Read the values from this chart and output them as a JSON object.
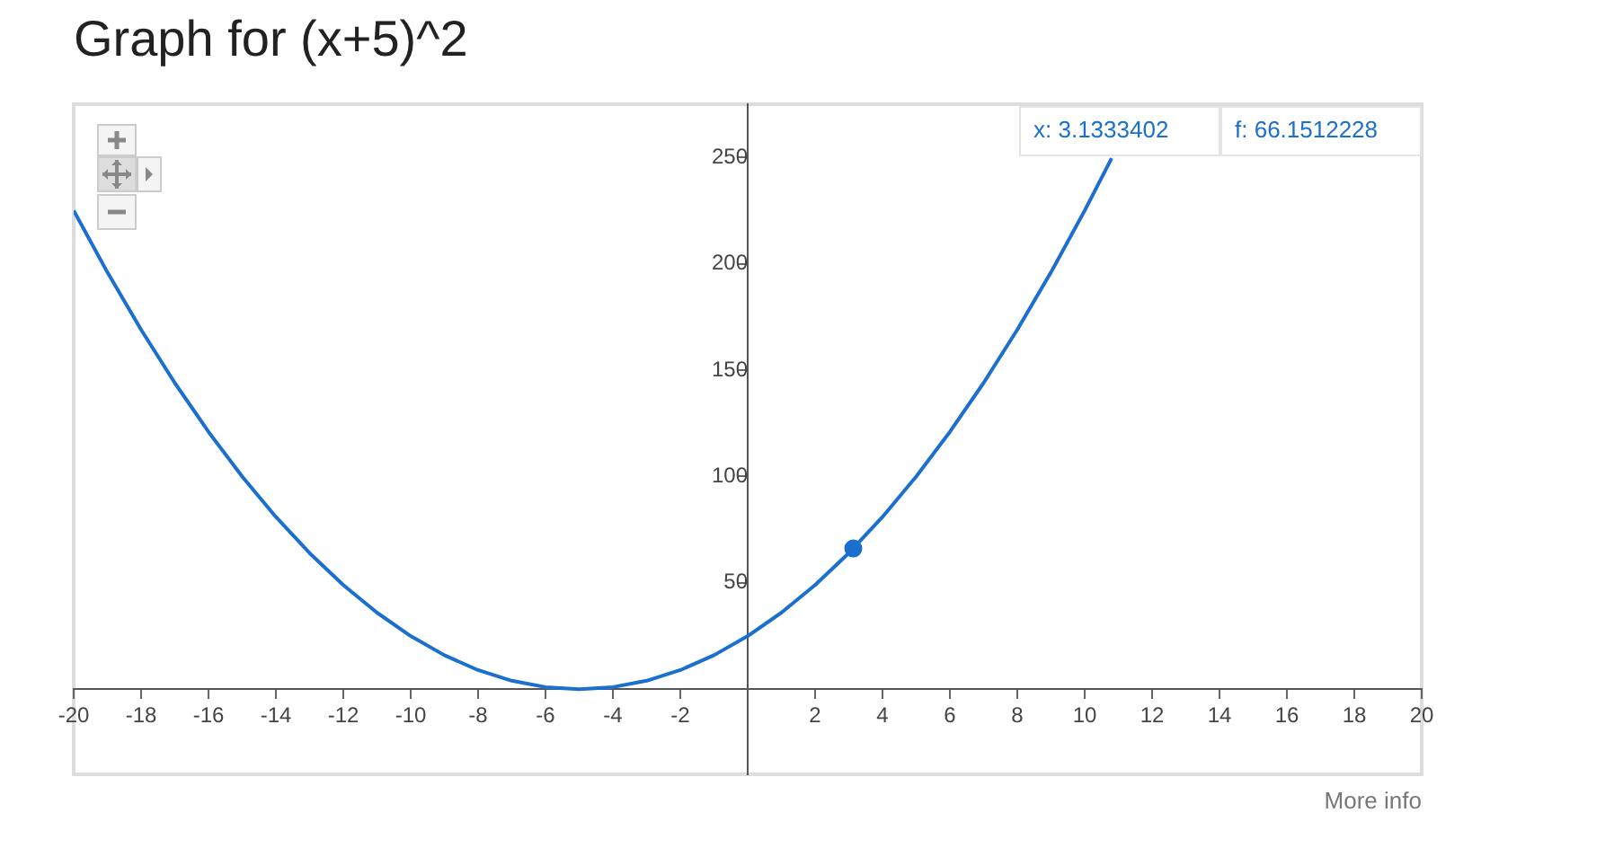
{
  "chart_data": {
    "type": "line",
    "title": "Graph for (x+5)^2",
    "xlim": [
      -20,
      20
    ],
    "ylim": [
      -40,
      275
    ],
    "xticks": [
      -20,
      -18,
      -16,
      -14,
      -12,
      -10,
      -8,
      -6,
      -4,
      -2,
      2,
      4,
      6,
      8,
      10,
      12,
      14,
      16,
      18,
      20
    ],
    "yticks": [
      50,
      100,
      150,
      200,
      250
    ],
    "grid": false,
    "line_style": "solid",
    "series": [
      {
        "color": "#1a6fcf",
        "x": [
          -20,
          -19,
          -18,
          -17,
          -16,
          -15,
          -14,
          -13,
          -12,
          -11,
          -10,
          -9,
          -8,
          -7,
          -6,
          -5,
          -4,
          -3,
          -2,
          -1,
          0,
          1,
          2,
          3,
          4,
          5,
          6,
          7,
          8,
          9,
          10,
          10.8
        ],
        "values": [
          225,
          196,
          169,
          144,
          121,
          100,
          81,
          64,
          49,
          36,
          25,
          16,
          9,
          4,
          1,
          0,
          1,
          4,
          9,
          16,
          25,
          36,
          49,
          64,
          81,
          100,
          121,
          144,
          169,
          196,
          225,
          249.6
        ]
      },
      {
        "type": "scatter",
        "color": "#1a6fcf",
        "x": [
          3.1333402
        ],
        "values": [
          66.1512228
        ]
      }
    ],
    "annotations": [
      "x: 3.1333402",
      "f: 66.1512228",
      "More info"
    ]
  }
}
